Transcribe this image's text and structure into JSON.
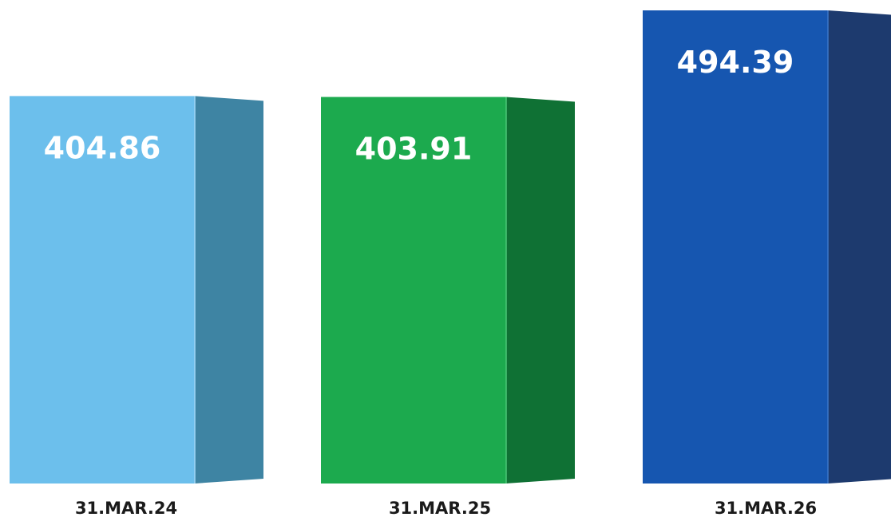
{
  "chart_data": {
    "type": "bar",
    "categories": [
      "31.MAR.24",
      "31.MAR.25",
      "31.MAR.26"
    ],
    "values": [
      404.86,
      403.91,
      494.39
    ],
    "value_labels": [
      "404.86",
      "403.91",
      "494.39"
    ],
    "title": "",
    "xlabel": "",
    "ylabel": "",
    "grid": false,
    "legend": "none",
    "style": "3d-box",
    "colors": [
      {
        "front": "#6cbfec",
        "side": "#3e84a3",
        "top": "#9ed6f5"
      },
      {
        "front": "#1caa4e",
        "side": "#0f7134",
        "top": "#4cc776"
      },
      {
        "front": "#1656b0",
        "side": "#1d3a6e",
        "top": "#3b77c9"
      }
    ]
  }
}
